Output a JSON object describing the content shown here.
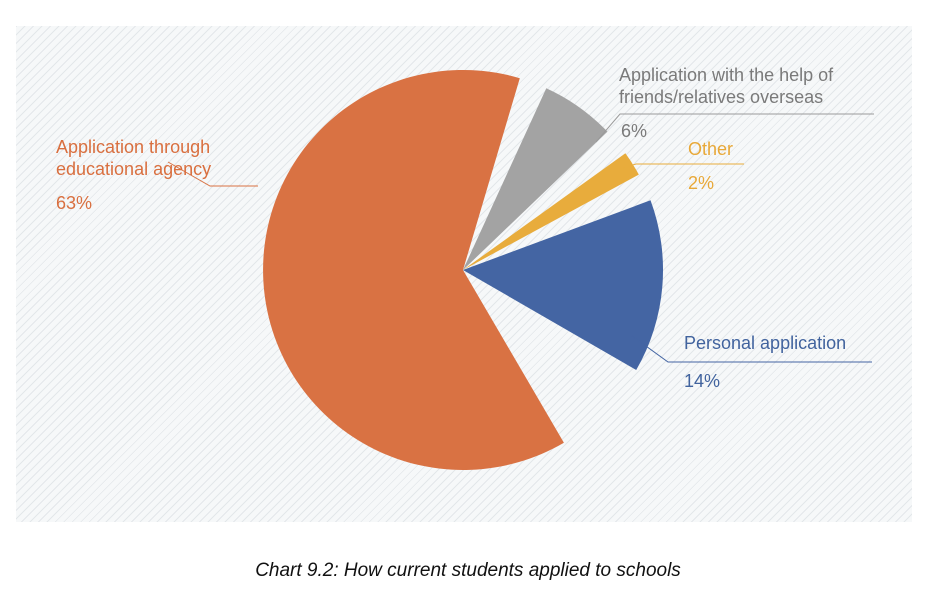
{
  "chart_data": {
    "type": "pie",
    "title": "Chart 9.2: How current students applied to schools",
    "slices": [
      {
        "label": "Application through educational agency",
        "value": 63,
        "value_label": "63%",
        "color": "#d97243"
      },
      {
        "label": "Application with the help of friends/relatives overseas",
        "value": 6,
        "value_label": "6%",
        "color": "#a3a3a3"
      },
      {
        "label": "Other",
        "value": 2,
        "value_label": "2%",
        "color": "#e8ac3c"
      },
      {
        "label": "Personal application",
        "value": 14,
        "value_label": "14%",
        "color": "#4465a3"
      }
    ]
  },
  "labels": {
    "agency_line1": "Application through",
    "agency_line2": "educational agency",
    "friends_line1": "Application with the help of",
    "friends_line2": "friends/relatives overseas"
  }
}
